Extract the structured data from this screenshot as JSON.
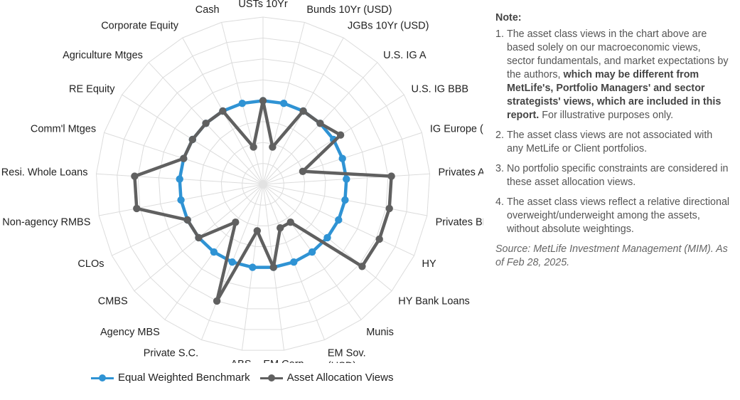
{
  "chart_data": {
    "type": "radar",
    "categories": [
      "USTs 10Yr",
      "Bunds 10Yr (USD)",
      "JGBs 10Yr (USD)",
      "U.S. IG A",
      "U.S. IG BBB",
      "IG Europe (USD)",
      "Privates A",
      "Privates BBB",
      "HY",
      "HY Bank Loans",
      "Munis",
      "EM Sov.\n(USD)",
      "EM Corp.\n(USD)",
      "ABS",
      "Private S.C.",
      "Agency MBS",
      "CMBS",
      "CLOs",
      "Non-agency RMBS",
      "Resi. Whole Loans",
      "Comm'l Mtges",
      "RE Equity",
      "Agriculture Mtges",
      "Corporate Equity",
      "Cash"
    ],
    "rlim": [
      0,
      1
    ],
    "series": [
      {
        "name": "Equal Weighted Benchmark",
        "color": "#2f93d4",
        "values": [
          0.5,
          0.5,
          0.5,
          0.5,
          0.5,
          0.5,
          0.5,
          0.5,
          0.5,
          0.5,
          0.5,
          0.5,
          0.5,
          0.5,
          0.5,
          0.5,
          0.5,
          0.5,
          0.5,
          0.5,
          0.5,
          0.5,
          0.5,
          0.5,
          0.5
        ]
      },
      {
        "name": "Asset Allocation Views",
        "color": "#606060",
        "values": [
          0.5,
          0.23,
          0.5,
          0.5,
          0.55,
          0.25,
          0.77,
          0.77,
          0.77,
          0.77,
          0.28,
          0.28,
          0.5,
          0.28,
          0.75,
          0.28,
          0.5,
          0.5,
          0.77,
          0.77,
          0.5,
          0.5,
          0.5,
          0.5,
          0.23
        ]
      }
    ],
    "grid": true
  },
  "legend": {
    "benchmark": "Equal Weighted Benchmark",
    "views": "Asset Allocation Views"
  },
  "notes": {
    "title": "Note:",
    "n1_pre": "The asset class views in the chart above are based solely on our macroeconomic views, sector fundamentals, and market expectations by the authors, ",
    "n1_bold": "which may be different from MetLife's, Portfolio Managers' and sector strategists' views, which are included in this report.",
    "n1_post": " For illustrative purposes only.",
    "n2": "The asset class views are not associated with any MetLife or Client portfolios.",
    "n3": "No portfolio specific constraints are considered in these asset allocation views.",
    "n4": "The asset class views reflect a relative directional overweight/underweight among the assets, without absolute weightings.",
    "source": "Source: MetLife Investment Management (MIM). As of Feb 28, 2025.",
    "num1": "1.",
    "num2": "2.",
    "num3": "3.",
    "num4": "4."
  }
}
